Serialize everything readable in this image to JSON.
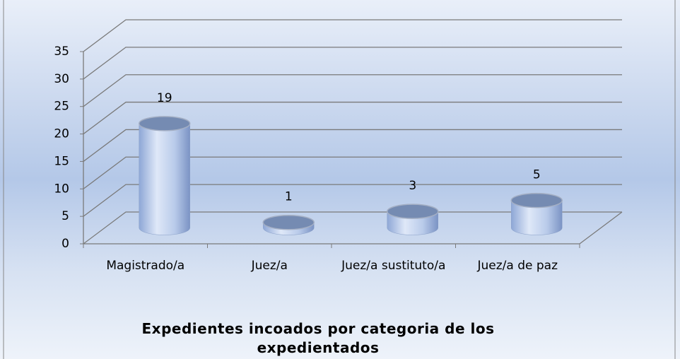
{
  "chart_data": {
    "type": "bar3d",
    "title": "Expedientes incoados por categoria de los expedientados",
    "categories": [
      "Magistrado/a",
      "Juez/a",
      "Juez/a sustituto/a",
      "Juez/a de paz"
    ],
    "values": [
      19,
      1,
      3,
      5
    ],
    "color": "#8fa9d9",
    "ylim": [
      0,
      35
    ],
    "yticks": [
      0,
      5,
      10,
      15,
      20,
      25,
      30,
      35
    ],
    "grid": true
  }
}
